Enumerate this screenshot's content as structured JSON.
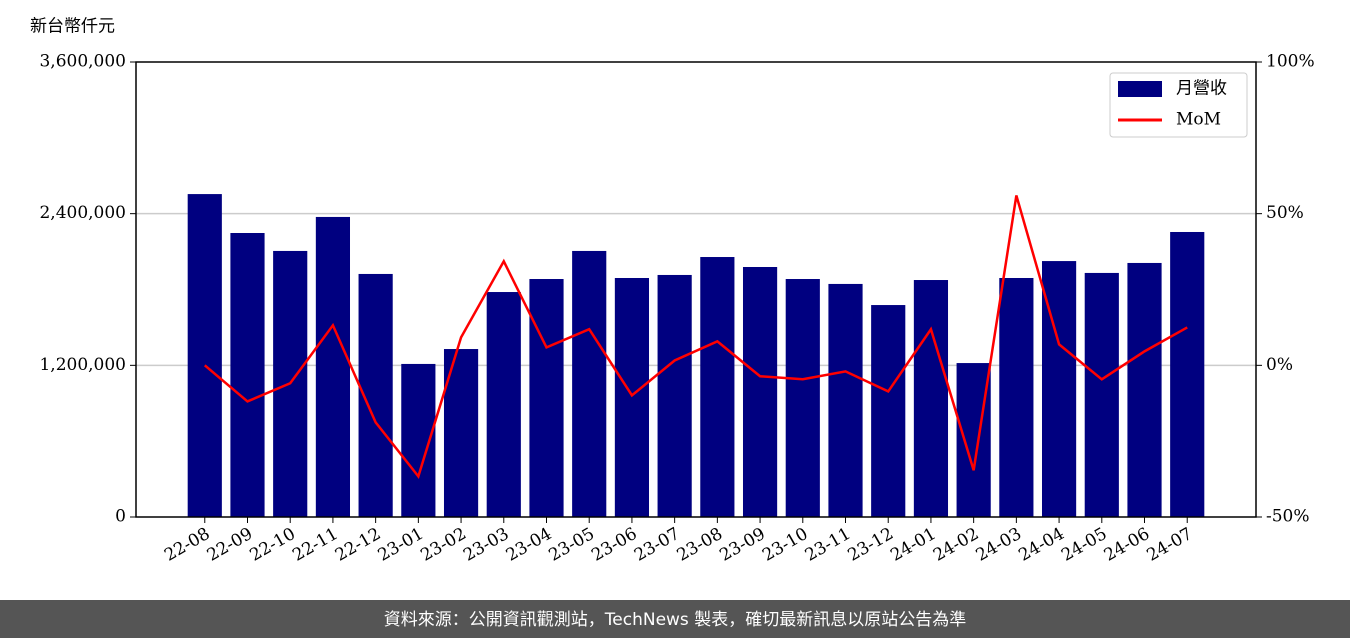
{
  "chart_data": {
    "type": "bar-line",
    "y_label": "新台幣仟元",
    "categories": [
      "22-08",
      "22-09",
      "22-10",
      "22-11",
      "22-12",
      "23-01",
      "23-02",
      "23-03",
      "23-04",
      "23-05",
      "23-06",
      "23-07",
      "23-08",
      "23-09",
      "23-10",
      "23-11",
      "23-12",
      "24-01",
      "24-02",
      "24-03",
      "24-04",
      "24-05",
      "24-06",
      "24-07"
    ],
    "series": [
      {
        "name": "月營收",
        "type": "bar",
        "color": "#000080",
        "values": [
          2555000,
          2247000,
          2105000,
          2374000,
          1923000,
          1211000,
          1329000,
          1780000,
          1883000,
          2105000,
          1891000,
          1915000,
          2057000,
          1978000,
          1883000,
          1844000,
          1677000,
          1875000,
          1218000,
          1891000,
          2025000,
          1931000,
          2010000,
          2255000
        ]
      },
      {
        "name": "MoM",
        "type": "line",
        "axis": "y2",
        "color": "#ff0000",
        "values": [
          0,
          -11.9,
          -5.9,
          13.2,
          -18.8,
          -36.6,
          9.2,
          34.3,
          5.9,
          11.9,
          -9.9,
          1.6,
          7.9,
          -3.6,
          -4.6,
          -2.0,
          -8.6,
          11.9,
          -34.6,
          56.0,
          6.9,
          -4.6,
          4.6,
          12.5
        ]
      }
    ],
    "ylim": [
      0,
      3600000
    ],
    "yticks": [
      0,
      {
        "value": 1200000,
        "label": "1,200,000"
      },
      {
        "value": 2400000,
        "label": "2,400,000"
      },
      {
        "value": 3600000,
        "label": "3,600,000"
      }
    ],
    "y2lim": [
      -50,
      100
    ],
    "y2ticks": [
      {
        "value": -50,
        "label": "-50%"
      },
      {
        "value": 0,
        "label": "0%"
      },
      {
        "value": 50,
        "label": "50%"
      },
      {
        "value": 100,
        "label": "100%"
      }
    ],
    "grid": true,
    "legend": "upper right",
    "source": "資料來源：公開資訊觀測站，TechNews 製表，確切最新訊息以原站公告為準"
  }
}
